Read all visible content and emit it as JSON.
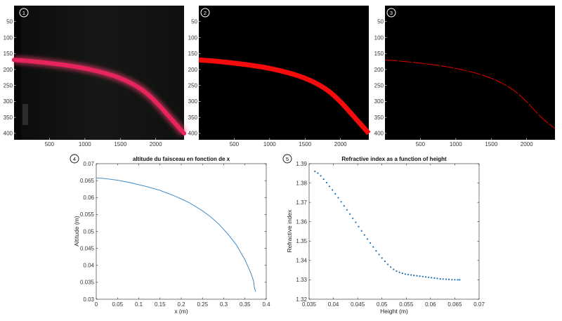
{
  "panel_labels": [
    "1",
    "2",
    "3",
    "4",
    "5"
  ],
  "colors": {
    "beam_photo": "#e8245c",
    "beam_mask": "#f50b0b",
    "beam_edge": "#d40000",
    "plot_line": "#2f7fc1",
    "plot_points": "#1f6fb2",
    "background": "#000000"
  },
  "chart_data": [
    {
      "type": "image",
      "panel": "1",
      "image_kind": "photograph",
      "xticks": [
        500,
        1000,
        1500,
        2000
      ],
      "yticks": [
        50,
        100,
        150,
        200,
        250,
        300,
        350,
        400
      ],
      "xlim": [
        0,
        2400
      ],
      "ylim": [
        420,
        0
      ],
      "beam_path": [
        [
          0,
          170
        ],
        [
          300,
          175
        ],
        [
          700,
          185
        ],
        [
          1100,
          200
        ],
        [
          1500,
          225
        ],
        [
          1800,
          260
        ],
        [
          2000,
          300
        ],
        [
          2200,
          350
        ],
        [
          2400,
          400
        ]
      ]
    },
    {
      "type": "image",
      "panel": "2",
      "image_kind": "color-threshold",
      "xticks": [
        500,
        1000,
        1500,
        2000
      ],
      "yticks": [
        50,
        100,
        150,
        200,
        250,
        300,
        350,
        400
      ],
      "xlim": [
        0,
        2400
      ],
      "ylim": [
        420,
        0
      ],
      "beam_path": [
        [
          0,
          170
        ],
        [
          300,
          175
        ],
        [
          700,
          185
        ],
        [
          1100,
          200
        ],
        [
          1500,
          225
        ],
        [
          1800,
          260
        ],
        [
          2000,
          300
        ],
        [
          2200,
          350
        ],
        [
          2400,
          400
        ]
      ]
    },
    {
      "type": "image",
      "panel": "3",
      "image_kind": "edge-detection",
      "xticks": [
        500,
        1000,
        1500,
        2000
      ],
      "yticks": [
        50,
        100,
        150,
        200,
        250,
        300,
        350,
        400
      ],
      "xlim": [
        0,
        2400
      ],
      "ylim": [
        420,
        0
      ],
      "beam_path": [
        [
          0,
          170
        ],
        [
          300,
          175
        ],
        [
          700,
          185
        ],
        [
          1100,
          200
        ],
        [
          1500,
          225
        ],
        [
          1800,
          260
        ],
        [
          2000,
          300
        ],
        [
          2200,
          350
        ],
        [
          2400,
          385
        ]
      ]
    },
    {
      "type": "line",
      "panel": "4",
      "title": "altitude du faisceau en fonction de x",
      "xlabel": "x (m)",
      "ylabel": "Altitude (m)",
      "xlim": [
        0,
        0.4
      ],
      "ylim": [
        0.03,
        0.07
      ],
      "xticks": [
        0,
        0.05,
        0.1,
        0.15,
        0.2,
        0.25,
        0.3,
        0.35,
        0.4
      ],
      "xtick_labels": [
        "0",
        "0.05",
        "0.1",
        "0.15",
        "0.2",
        "0.25",
        "0.3",
        "0.35",
        "0.4"
      ],
      "yticks": [
        0.03,
        0.035,
        0.04,
        0.045,
        0.05,
        0.055,
        0.06,
        0.065,
        0.07
      ],
      "ytick_labels": [
        "0.03",
        "0.035",
        "0.04",
        "0.045",
        "0.05",
        "0.055",
        "0.06",
        "0.065",
        "0.07"
      ],
      "x": [
        0,
        0.01,
        0.02,
        0.05,
        0.08,
        0.1,
        0.12,
        0.15,
        0.18,
        0.2,
        0.22,
        0.25,
        0.27,
        0.29,
        0.31,
        0.33,
        0.35,
        0.36,
        0.365,
        0.37,
        0.372,
        0.375
      ],
      "y": [
        0.0658,
        0.0657,
        0.0656,
        0.0651,
        0.0644,
        0.0638,
        0.0632,
        0.0621,
        0.0607,
        0.0596,
        0.0584,
        0.0561,
        0.0542,
        0.052,
        0.0492,
        0.046,
        0.0416,
        0.0388,
        0.0373,
        0.0354,
        0.0335,
        0.0322
      ]
    },
    {
      "type": "scatter",
      "panel": "5",
      "title": "Refractive index as a function of height",
      "xlabel": "Height (m)",
      "ylabel": "Refractive index",
      "xlim": [
        0.035,
        0.07
      ],
      "ylim": [
        1.32,
        1.39
      ],
      "xticks": [
        0.035,
        0.04,
        0.045,
        0.05,
        0.055,
        0.06,
        0.065,
        0.07
      ],
      "xtick_labels": [
        "0.035",
        "0.04",
        "0.045",
        "0.05",
        "0.055",
        "0.06",
        "0.065",
        "0.07"
      ],
      "yticks": [
        1.32,
        1.33,
        1.34,
        1.35,
        1.36,
        1.37,
        1.38,
        1.39
      ],
      "ytick_labels": [
        "1.32",
        "1.33",
        "1.34",
        "1.35",
        "1.36",
        "1.37",
        "1.38",
        "1.39"
      ],
      "x": [
        0.0362,
        0.0368,
        0.0374,
        0.038,
        0.0386,
        0.0392,
        0.0398,
        0.0404,
        0.041,
        0.0416,
        0.0422,
        0.0428,
        0.0434,
        0.044,
        0.0446,
        0.0452,
        0.0458,
        0.0464,
        0.047,
        0.0476,
        0.0482,
        0.0488,
        0.0494,
        0.05,
        0.0506,
        0.0512,
        0.0518,
        0.0524,
        0.053,
        0.0536,
        0.0542,
        0.0548,
        0.0554,
        0.056,
        0.0566,
        0.0572,
        0.0578,
        0.0584,
        0.059,
        0.0596,
        0.0602,
        0.0608,
        0.0614,
        0.062,
        0.0626,
        0.0632,
        0.0638,
        0.0644,
        0.065,
        0.0656,
        0.066
      ],
      "y": [
        1.386,
        1.3851,
        1.3837,
        1.382,
        1.3802,
        1.3783,
        1.3764,
        1.3744,
        1.3724,
        1.3703,
        1.3682,
        1.3661,
        1.364,
        1.3618,
        1.3597,
        1.3575,
        1.3553,
        1.3532,
        1.3511,
        1.349,
        1.347,
        1.345,
        1.3431,
        1.3413,
        1.3396,
        1.338,
        1.3366,
        1.3354,
        1.3345,
        1.3339,
        1.3334,
        1.333,
        1.3327,
        1.3325,
        1.3323,
        1.3321,
        1.3319,
        1.3317,
        1.3315,
        1.3313,
        1.3311,
        1.3309,
        1.3307,
        1.3305,
        1.3304,
        1.3303,
        1.3302,
        1.3301,
        1.3301,
        1.33,
        1.33
      ]
    }
  ]
}
